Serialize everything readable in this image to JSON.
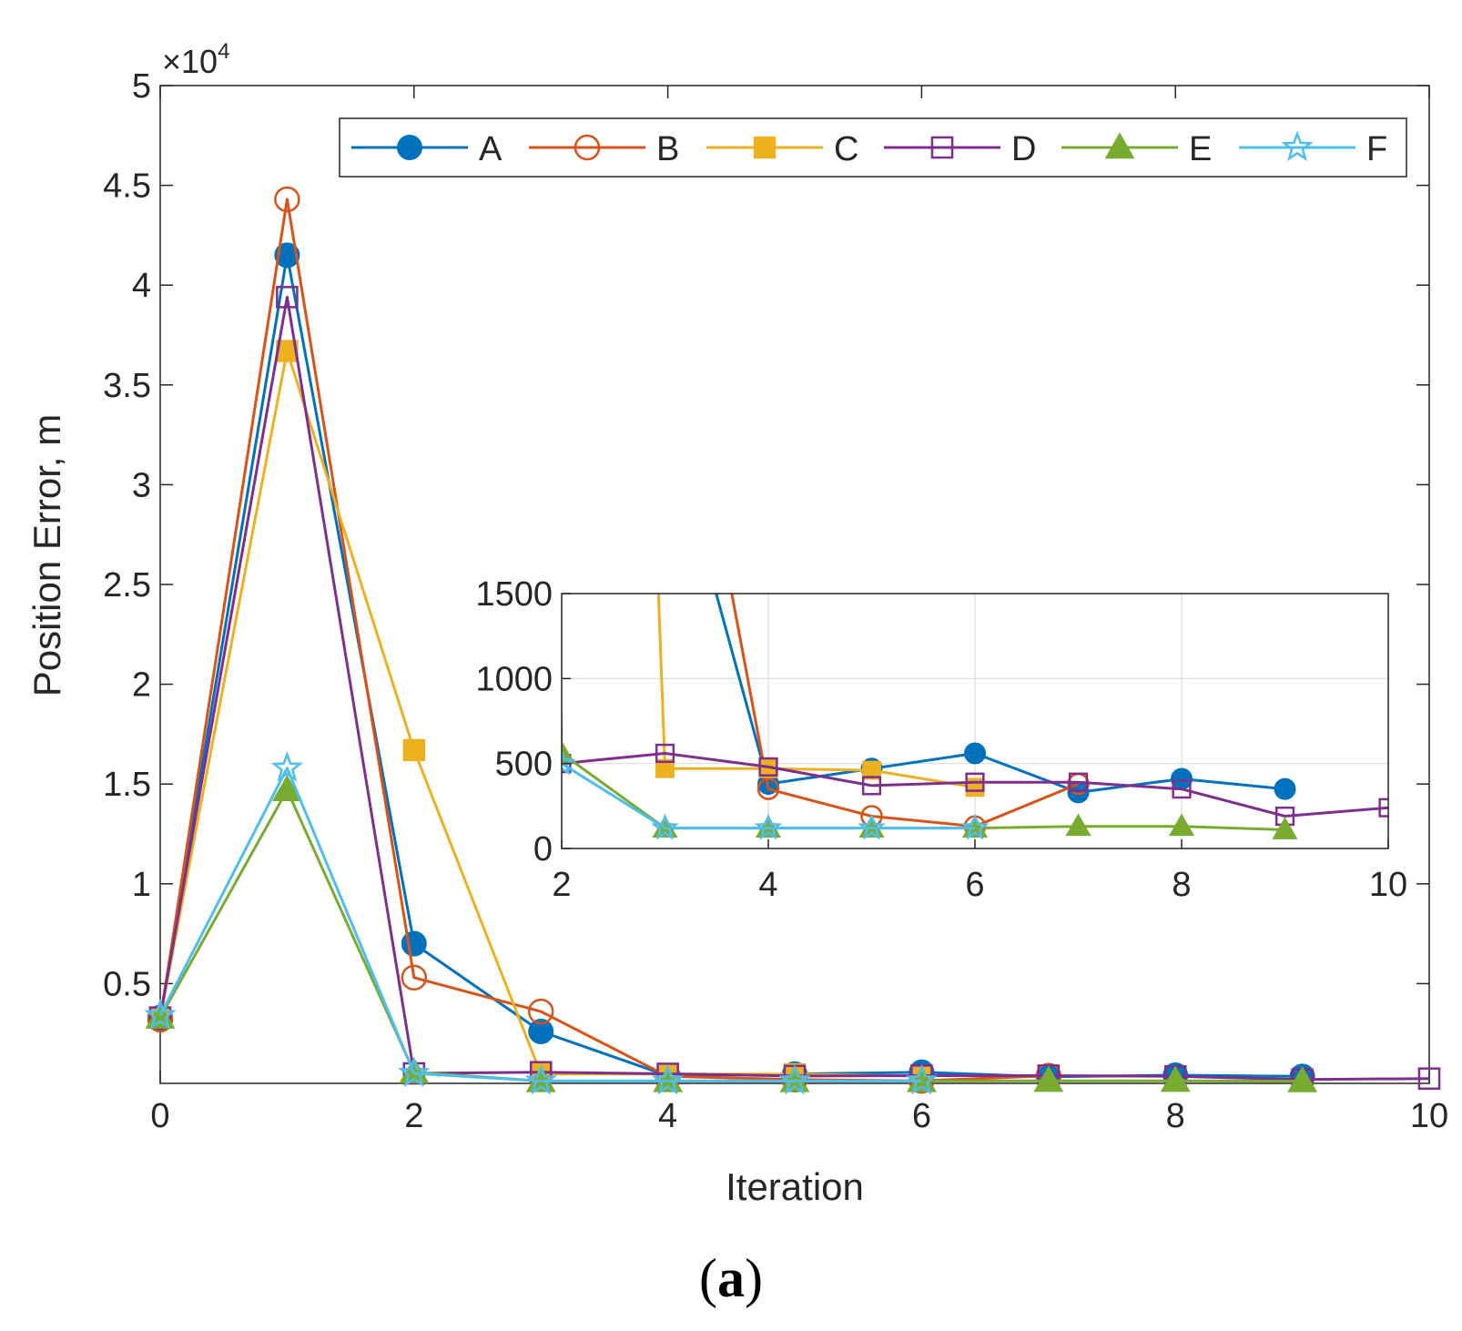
{
  "chart_data": [
    {
      "type": "line",
      "role": "main",
      "xlabel": "Iteration",
      "ylabel": "Position Error, m",
      "y_exponent_label": "×10",
      "y_exponent_power": "4",
      "xlim": [
        0,
        10
      ],
      "ylim": [
        0,
        50000
      ],
      "xticks": [
        0,
        2,
        4,
        6,
        8,
        10
      ],
      "xtick_labels": [
        "0",
        "2",
        "4",
        "6",
        "8",
        "10"
      ],
      "yticks": [
        5000,
        10000,
        15000,
        20000,
        25000,
        30000,
        35000,
        40000,
        45000,
        50000
      ],
      "ytick_labels": [
        "0.5",
        "1",
        "1.5",
        "2",
        "2.5",
        "3",
        "3.5",
        "4",
        "4.5",
        "5"
      ],
      "grid": false,
      "legend_position": "top-right",
      "series": [
        {
          "name": "A",
          "color": "#0072BD",
          "marker": "circle-filled",
          "x": [
            0,
            1,
            2,
            3,
            4,
            5,
            6,
            7,
            8,
            9
          ],
          "y": [
            3300,
            41500,
            7000,
            2600,
            380,
            470,
            560,
            330,
            410,
            350
          ]
        },
        {
          "name": "B",
          "color": "#D95319",
          "marker": "circle-open",
          "x": [
            0,
            1,
            2,
            3,
            4,
            5,
            6,
            7
          ],
          "y": [
            3200,
            44300,
            5300,
            3600,
            350,
            190,
            130,
            380
          ]
        },
        {
          "name": "C",
          "color": "#EDB120",
          "marker": "square-filled",
          "x": [
            0,
            1,
            2,
            3,
            4,
            5,
            6
          ],
          "y": [
            3300,
            36700,
            16700,
            470,
            470,
            460,
            360
          ]
        },
        {
          "name": "D",
          "color": "#7E2F8E",
          "marker": "square-open",
          "x": [
            0,
            1,
            2,
            3,
            4,
            5,
            6,
            7,
            8,
            9,
            10
          ],
          "y": [
            3300,
            39400,
            500,
            560,
            480,
            370,
            390,
            390,
            350,
            190,
            240
          ]
        },
        {
          "name": "E",
          "color": "#77AC30",
          "marker": "triangle-filled",
          "x": [
            0,
            1,
            2,
            3,
            4,
            5,
            6,
            7,
            8,
            9
          ],
          "y": [
            3300,
            14700,
            560,
            120,
            120,
            120,
            120,
            130,
            130,
            110
          ]
        },
        {
          "name": "F",
          "color": "#4DBEEE",
          "marker": "star-open",
          "x": [
            0,
            1,
            2,
            3,
            4,
            5,
            6
          ],
          "y": [
            3400,
            15800,
            500,
            120,
            120,
            120,
            120
          ]
        }
      ]
    },
    {
      "type": "line",
      "role": "inset",
      "xlim": [
        2,
        10
      ],
      "ylim": [
        0,
        1500
      ],
      "xticks": [
        2,
        4,
        6,
        8,
        10
      ],
      "xtick_labels": [
        "2",
        "4",
        "6",
        "8",
        "10"
      ],
      "yticks": [
        0,
        500,
        1000,
        1500
      ],
      "ytick_labels": [
        "0",
        "500",
        "1000",
        "1500"
      ],
      "grid": true
    }
  ],
  "caption": {
    "open": "(",
    "letter": "a",
    "close": ")"
  }
}
